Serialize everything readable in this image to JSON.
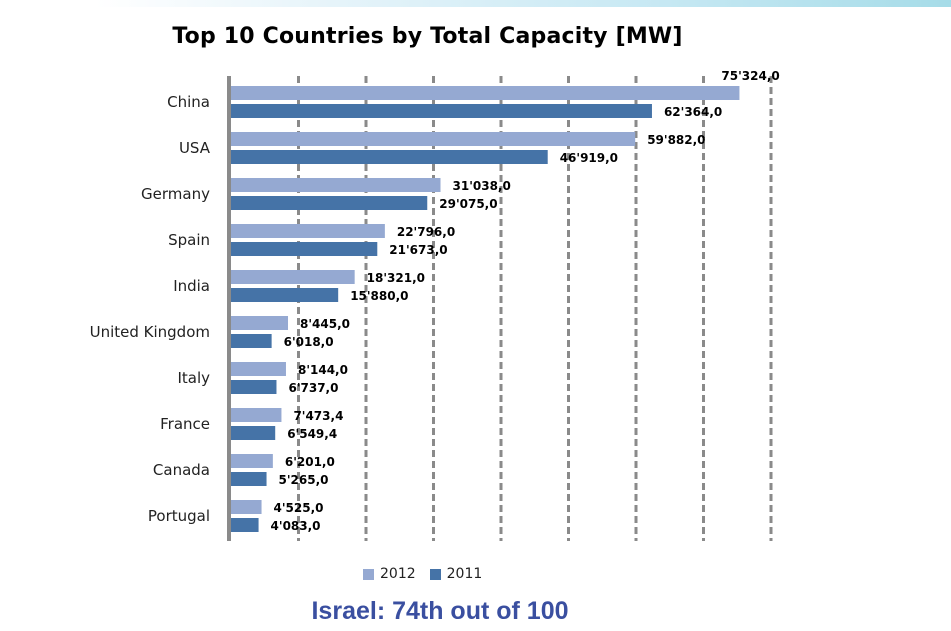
{
  "chart_data": {
    "type": "bar",
    "orientation": "horizontal",
    "title": "Top 10 Countries by Total Capacity [MW]",
    "xlabel": "",
    "ylabel": "",
    "xlim": [
      0,
      80000
    ],
    "grid_step": 10000,
    "grid": true,
    "grid_style": "dashed-vertical",
    "tick_labels_shown": false,
    "legend_position": "bottom",
    "categories": [
      "China",
      "USA",
      "Germany",
      "Spain",
      "India",
      "United Kingdom",
      "Italy",
      "France",
      "Canada",
      "Portugal"
    ],
    "series": [
      {
        "name": "2012",
        "color": "#95a9d2",
        "values": [
          75324.0,
          59882.0,
          31038.0,
          22796.0,
          18321.0,
          8445.0,
          8144.0,
          7473.4,
          6201.0,
          4525.0
        ],
        "labels": [
          "75'324,0",
          "59'882,0",
          "31'038,0",
          "22'796,0",
          "18'321,0",
          "8'445,0",
          "8'144,0",
          "7'473,4",
          "6'201,0",
          "4'525,0"
        ]
      },
      {
        "name": "2011",
        "color": "#4573a7",
        "values": [
          62364.0,
          46919.0,
          29075.0,
          21673.0,
          15880.0,
          6018.0,
          6737.0,
          6549.4,
          5265.0,
          4083.0
        ],
        "labels": [
          "62'364,0",
          "46'919,0",
          "29'075,0",
          "21'673,0",
          "15'880,0",
          "6'018,0",
          "6'737,0",
          "6'549,4",
          "5'265,0",
          "4'083,0"
        ]
      }
    ]
  },
  "legend": {
    "items": [
      {
        "label": "2012",
        "color": "#95a9d2"
      },
      {
        "label": "2011",
        "color": "#4573a7"
      }
    ]
  },
  "footer": {
    "note": "Israel: 74th out of 100"
  }
}
